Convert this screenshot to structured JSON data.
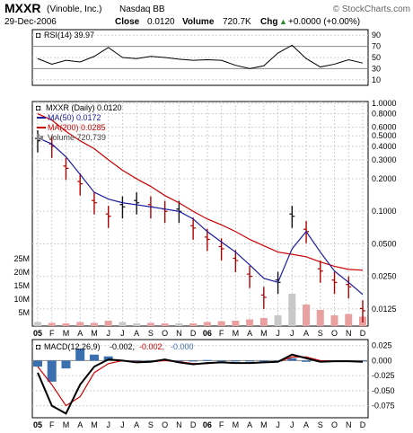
{
  "header": {
    "symbol": "MXXR",
    "company": "(Vinoble, Inc.)",
    "exchange": "Nasdaq BB",
    "watermark": "© StockCharts.com",
    "date": "29-Dec-2006",
    "close_label": "Close",
    "close_value": "0.0120",
    "volume_label": "Volume",
    "volume_value": "720.7K",
    "chg_label": "Chg",
    "chg_value": "+0.0000 (+0.00%)",
    "chg_arrow": "▲"
  },
  "rsi_panel": {
    "legend": "RSI(14) 39.97",
    "ticks": [
      "90",
      "70",
      "50",
      "30",
      "10"
    ]
  },
  "price_panel": {
    "legend_title": "MXXR (Daily) 0.0120",
    "legend_ma50": "MA(50) 0.0172",
    "legend_ma200": "MA(200) 0.0285",
    "legend_volume": "Volume 720,739",
    "price_ticks": [
      "1.0000",
      "0.8000",
      "0.6000",
      "0.5000",
      "0.4000",
      "0.3000",
      "0.2000",
      "0.1000",
      "0.0500",
      "0.0250",
      "0.0125"
    ],
    "volume_ticks": [
      "25M",
      "20M",
      "15M",
      "10M",
      "5M"
    ]
  },
  "macd_panel": {
    "legend_prefix": "MACD(12,26,9)",
    "legend_macd": "-0.002,",
    "legend_signal": "-0.002,",
    "legend_hist": "-0.000",
    "ticks": [
      "0.025",
      "0.000",
      "-0.025",
      "-0.050",
      "-0.075"
    ]
  },
  "x_axis": {
    "labels": [
      "05",
      "F",
      "M",
      "A",
      "M",
      "J",
      "J",
      "A",
      "S",
      "O",
      "N",
      "D",
      "06",
      "F",
      "M",
      "A",
      "M",
      "J",
      "J",
      "A",
      "S",
      "O",
      "N",
      "D"
    ]
  },
  "colors": {
    "price_bars": "#111111",
    "ma50": "#1a1aa0",
    "ma200": "#cc0000",
    "volume_up": "#c8c8c8",
    "volume_down": "#e8a0a0",
    "rsi_line": "#000000",
    "macd_line": "#000000",
    "signal_line": "#cc0000",
    "histogram": "#3a6fb0",
    "grid": "#cfcfcf"
  },
  "chart_data": [
    {
      "type": "line",
      "title": "RSI(14)",
      "ylim": [
        0,
        100
      ],
      "reference_lines": [
        70,
        30
      ],
      "x": [
        "2005-01",
        "2005-02",
        "2005-03",
        "2005-04",
        "2005-05",
        "2005-06",
        "2005-07",
        "2005-08",
        "2005-09",
        "2005-10",
        "2005-11",
        "2005-12",
        "2006-01",
        "2006-02",
        "2006-03",
        "2006-04",
        "2006-05",
        "2006-06",
        "2006-07",
        "2006-08",
        "2006-09",
        "2006-10",
        "2006-11",
        "2006-12"
      ],
      "series": [
        {
          "name": "RSI(14)",
          "values": [
            48,
            38,
            45,
            42,
            52,
            68,
            50,
            48,
            52,
            50,
            47,
            45,
            46,
            45,
            36,
            30,
            35,
            58,
            72,
            48,
            33,
            38,
            46,
            40
          ]
        }
      ]
    },
    {
      "type": "line",
      "title": "MXXR (Daily)",
      "yscale": "log",
      "ylim": [
        0.009,
        1.0
      ],
      "x": [
        "2005-01",
        "2005-02",
        "2005-03",
        "2005-04",
        "2005-05",
        "2005-06",
        "2005-07",
        "2005-08",
        "2005-09",
        "2005-10",
        "2005-11",
        "2005-12",
        "2006-01",
        "2006-02",
        "2006-03",
        "2006-04",
        "2006-05",
        "2006-06",
        "2006-07",
        "2006-08",
        "2006-09",
        "2006-10",
        "2006-11",
        "2006-12"
      ],
      "series": [
        {
          "name": "MXXR",
          "values": [
            0.45,
            0.4,
            0.25,
            0.18,
            0.12,
            0.09,
            0.11,
            0.12,
            0.11,
            0.1,
            0.1,
            0.07,
            0.055,
            0.045,
            0.035,
            0.025,
            0.016,
            0.022,
            0.09,
            0.065,
            0.028,
            0.022,
            0.02,
            0.012
          ]
        },
        {
          "name": "MA(50)",
          "values": [
            0.48,
            0.42,
            0.32,
            0.22,
            0.15,
            0.13,
            0.12,
            0.115,
            0.11,
            0.105,
            0.1,
            0.085,
            0.065,
            0.052,
            0.042,
            0.032,
            0.024,
            0.022,
            0.045,
            0.065,
            0.042,
            0.028,
            0.022,
            0.017
          ]
        },
        {
          "name": "MA(200)",
          "values": [
            0.8,
            0.7,
            0.55,
            0.45,
            0.38,
            0.3,
            0.24,
            0.2,
            0.17,
            0.14,
            0.12,
            0.1,
            0.085,
            0.075,
            0.065,
            0.055,
            0.048,
            0.042,
            0.04,
            0.038,
            0.034,
            0.031,
            0.029,
            0.0285
          ]
        }
      ]
    },
    {
      "type": "bar",
      "title": "Volume",
      "ylim": [
        0,
        30
      ],
      "unit": "M",
      "x": [
        "2005-01",
        "2005-02",
        "2005-03",
        "2005-04",
        "2005-05",
        "2005-06",
        "2005-07",
        "2005-08",
        "2005-09",
        "2005-10",
        "2005-11",
        "2005-12",
        "2006-01",
        "2006-02",
        "2006-03",
        "2006-04",
        "2006-05",
        "2006-06",
        "2006-07",
        "2006-08",
        "2006-09",
        "2006-10",
        "2006-11",
        "2006-12"
      ],
      "values": [
        1.5,
        1.2,
        1.0,
        1.5,
        1.2,
        2.0,
        1.5,
        1.0,
        1.2,
        1.0,
        1.0,
        1.0,
        1.5,
        1.8,
        2.0,
        2.5,
        3.0,
        4.0,
        12.0,
        8.0,
        6.0,
        4.0,
        4.5,
        3.5
      ]
    },
    {
      "type": "line",
      "title": "MACD(12,26,9)",
      "ylim": [
        -0.095,
        0.035
      ],
      "x": [
        "2005-01",
        "2005-02",
        "2005-03",
        "2005-04",
        "2005-05",
        "2005-06",
        "2005-07",
        "2005-08",
        "2005-09",
        "2005-10",
        "2005-11",
        "2005-12",
        "2006-01",
        "2006-02",
        "2006-03",
        "2006-04",
        "2006-05",
        "2006-06",
        "2006-07",
        "2006-08",
        "2006-09",
        "2006-10",
        "2006-11",
        "2006-12"
      ],
      "series": [
        {
          "name": "MACD",
          "values": [
            -0.02,
            -0.075,
            -0.088,
            -0.04,
            -0.01,
            0.002,
            0.0,
            -0.003,
            -0.002,
            0.002,
            -0.003,
            -0.006,
            -0.004,
            -0.003,
            -0.004,
            -0.004,
            -0.003,
            -0.002,
            0.01,
            0.004,
            -0.002,
            -0.001,
            -0.001,
            -0.002
          ]
        },
        {
          "name": "Signal",
          "values": [
            -0.01,
            -0.04,
            -0.075,
            -0.06,
            -0.02,
            -0.005,
            0.0,
            -0.002,
            -0.002,
            0.0,
            -0.002,
            -0.005,
            -0.005,
            -0.003,
            -0.004,
            -0.004,
            -0.003,
            -0.002,
            0.006,
            0.006,
            0.0,
            -0.001,
            -0.001,
            -0.002
          ]
        },
        {
          "name": "Histogram",
          "values": [
            -0.01,
            -0.035,
            -0.013,
            0.02,
            0.01,
            0.007,
            0.0,
            -0.001,
            0.0,
            0.002,
            -0.001,
            -0.001,
            0.001,
            0.0,
            0.0,
            0.0,
            0.0,
            0.0,
            0.004,
            -0.002,
            -0.002,
            0.0,
            0.0,
            0.0
          ]
        }
      ]
    }
  ]
}
